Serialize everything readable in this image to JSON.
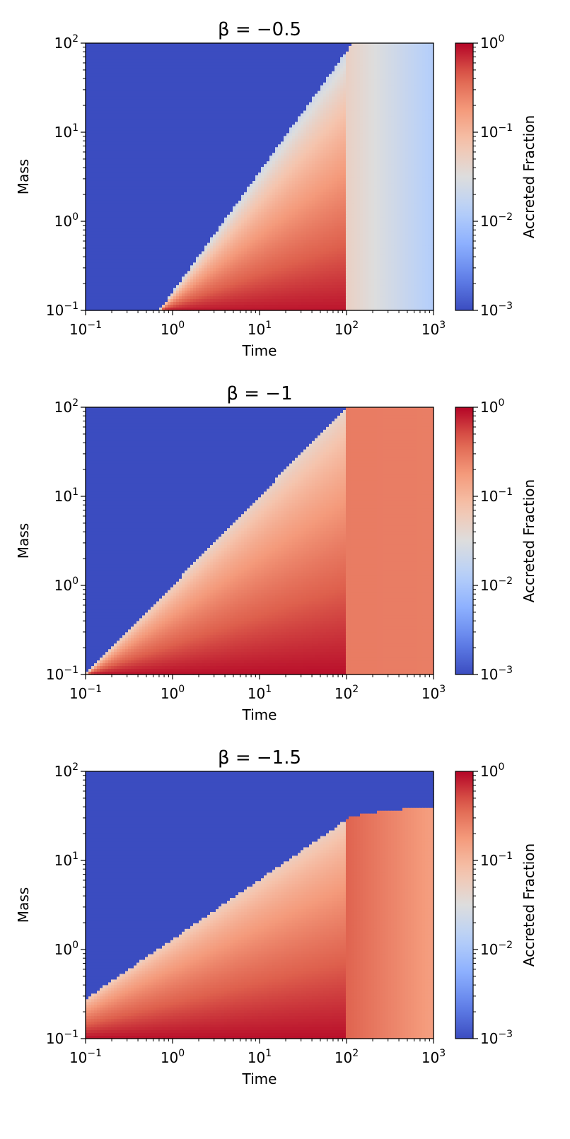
{
  "chart_data": [
    {
      "type": "heatmap",
      "title": "β = −0.5",
      "xlabel": "Time",
      "ylabel": "Mass",
      "xscale": "log",
      "yscale": "log",
      "xlim": [
        0.1,
        1000
      ],
      "ylim": [
        0.1,
        100
      ],
      "x_ticks": [
        {
          "base": "10",
          "exp": "−1"
        },
        {
          "base": "10",
          "exp": "0"
        },
        {
          "base": "10",
          "exp": "1"
        },
        {
          "base": "10",
          "exp": "2"
        },
        {
          "base": "10",
          "exp": "3"
        }
      ],
      "y_ticks": [
        {
          "base": "10",
          "exp": "−1"
        },
        {
          "base": "10",
          "exp": "0"
        },
        {
          "base": "10",
          "exp": "1"
        },
        {
          "base": "10",
          "exp": "2"
        }
      ],
      "colorbar": {
        "label": "Accreted Fraction",
        "scale": "log",
        "range": [
          0.001,
          1
        ],
        "colormap": "coolwarm",
        "ticks": [
          {
            "base": "10",
            "exp": "−3"
          },
          {
            "base": "10",
            "exp": "−2"
          },
          {
            "base": "10",
            "exp": "−1"
          },
          {
            "base": "10",
            "exp": "0"
          }
        ]
      },
      "regions": {
        "empty_value": 0.001,
        "boundary_slope": 1.35,
        "boundary_mass_at_t1": 0.16,
        "source_end_time": 100,
        "early_value_range": [
          0.02,
          0.85
        ],
        "late_value_at_t100": 0.05,
        "late_value_at_t1000": 0.012
      }
    },
    {
      "type": "heatmap",
      "title": "β = −1",
      "xlabel": "Time",
      "ylabel": "Mass",
      "xscale": "log",
      "yscale": "log",
      "xlim": [
        0.1,
        1000
      ],
      "ylim": [
        0.1,
        100
      ],
      "x_ticks": [
        {
          "base": "10",
          "exp": "−1"
        },
        {
          "base": "10",
          "exp": "0"
        },
        {
          "base": "10",
          "exp": "1"
        },
        {
          "base": "10",
          "exp": "2"
        },
        {
          "base": "10",
          "exp": "3"
        }
      ],
      "y_ticks": [
        {
          "base": "10",
          "exp": "−1"
        },
        {
          "base": "10",
          "exp": "0"
        },
        {
          "base": "10",
          "exp": "1"
        },
        {
          "base": "10",
          "exp": "2"
        }
      ],
      "colorbar": {
        "label": "Accreted Fraction",
        "scale": "log",
        "range": [
          0.001,
          1
        ],
        "colormap": "coolwarm",
        "ticks": [
          {
            "base": "10",
            "exp": "−3"
          },
          {
            "base": "10",
            "exp": "−2"
          },
          {
            "base": "10",
            "exp": "−1"
          },
          {
            "base": "10",
            "exp": "0"
          }
        ]
      },
      "regions": {
        "empty_value": 0.001,
        "boundary_slope": 1.0,
        "boundary_mass_at_t1": 1.0,
        "source_end_time": 100,
        "early_value_range": [
          0.04,
          0.9
        ],
        "late_value_at_t100": 0.28,
        "late_value_at_t1000": 0.27
      }
    },
    {
      "type": "heatmap",
      "title": "β = −1.5",
      "xlabel": "Time",
      "ylabel": "Mass",
      "xscale": "log",
      "yscale": "log",
      "xlim": [
        0.1,
        1000
      ],
      "ylim": [
        0.1,
        100
      ],
      "x_ticks": [
        {
          "base": "10",
          "exp": "−1"
        },
        {
          "base": "10",
          "exp": "0"
        },
        {
          "base": "10",
          "exp": "1"
        },
        {
          "base": "10",
          "exp": "2"
        },
        {
          "base": "10",
          "exp": "3"
        }
      ],
      "y_ticks": [
        {
          "base": "10",
          "exp": "−1"
        },
        {
          "base": "10",
          "exp": "0"
        },
        {
          "base": "10",
          "exp": "1"
        },
        {
          "base": "10",
          "exp": "2"
        }
      ],
      "colorbar": {
        "label": "Accreted Fraction",
        "scale": "log",
        "range": [
          0.001,
          1
        ],
        "colormap": "coolwarm",
        "ticks": [
          {
            "base": "10",
            "exp": "−3"
          },
          {
            "base": "10",
            "exp": "−2"
          },
          {
            "base": "10",
            "exp": "−1"
          },
          {
            "base": "10",
            "exp": "0"
          }
        ]
      },
      "regions": {
        "empty_value": 0.001,
        "boundary_slope": 0.67,
        "boundary_mass_at_t1": 1.3,
        "boundary_plateau_mass": 40,
        "source_end_time": 100,
        "early_value_range": [
          0.05,
          0.9
        ],
        "late_value_at_t100": 0.4,
        "late_value_at_t1000": 0.16
      }
    }
  ]
}
